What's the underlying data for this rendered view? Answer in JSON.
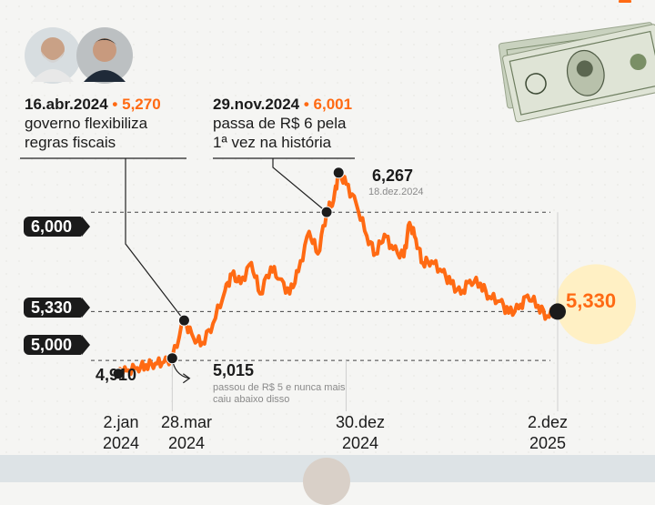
{
  "colors": {
    "series": "#ff6a13",
    "text": "#1b1b1b",
    "muted": "#8a8a8a",
    "highlight": "#fff0c4"
  },
  "portraits": [
    "portrait-icon-lula",
    "portrait-icon-haddad",
    "dollar-bills-icon"
  ],
  "annotations": {
    "abr": {
      "date": "16.abr.2024",
      "sep": " • ",
      "value": "5,270",
      "line1": "governo flexibiliza",
      "line2": "regras fiscais"
    },
    "nov": {
      "date": "29.nov.2024",
      "sep": " • ",
      "value": "6,001",
      "line1": "passa de R$ 6 pela",
      "line2": "1ª vez na história"
    }
  },
  "labels": {
    "max": "6,267",
    "max_date": "18.dez.2024",
    "start": "4,910",
    "cross5": "5,015",
    "cross5_note": "passou de R$ 5 e nunca mais caiu abaixo disso",
    "end": "5,330"
  },
  "ref_pills": {
    "p6000": "6,000",
    "p5330": "5,330",
    "p5000": "5,000"
  },
  "x_ticks": [
    {
      "line1": "2.jan",
      "line2": "2024"
    },
    {
      "line1": "28.mar",
      "line2": "2024"
    },
    {
      "line1": "30.dez",
      "line2": "2024"
    },
    {
      "line1": "2.dez",
      "line2": "2025"
    }
  ],
  "chart_data": {
    "type": "line",
    "x_start": "2024-01-02",
    "x_end": "2025-12-02",
    "ylim": [
      4.7,
      6.45
    ],
    "reference_lines": [
      6.0,
      5.33,
      5.0
    ],
    "series": [
      {
        "values": [
          {
            "x": "2024-01-02",
            "y": 4.91
          },
          {
            "x": "2024-01-15",
            "y": 4.93
          },
          {
            "x": "2024-02-01",
            "y": 4.95
          },
          {
            "x": "2024-02-15",
            "y": 4.97
          },
          {
            "x": "2024-03-01",
            "y": 4.98
          },
          {
            "x": "2024-03-15",
            "y": 4.99
          },
          {
            "x": "2024-03-28",
            "y": 5.015
          },
          {
            "x": "2024-04-16",
            "y": 5.27
          },
          {
            "x": "2024-05-01",
            "y": 5.15
          },
          {
            "x": "2024-05-15",
            "y": 5.12
          },
          {
            "x": "2024-06-01",
            "y": 5.25
          },
          {
            "x": "2024-06-20",
            "y": 5.47
          },
          {
            "x": "2024-07-01",
            "y": 5.58
          },
          {
            "x": "2024-07-15",
            "y": 5.52
          },
          {
            "x": "2024-08-01",
            "y": 5.66
          },
          {
            "x": "2024-08-15",
            "y": 5.45
          },
          {
            "x": "2024-09-01",
            "y": 5.63
          },
          {
            "x": "2024-09-15",
            "y": 5.55
          },
          {
            "x": "2024-10-01",
            "y": 5.45
          },
          {
            "x": "2024-10-15",
            "y": 5.6
          },
          {
            "x": "2024-11-01",
            "y": 5.87
          },
          {
            "x": "2024-11-15",
            "y": 5.72
          },
          {
            "x": "2024-11-29",
            "y": 6.001
          },
          {
            "x": "2024-12-10",
            "y": 6.08
          },
          {
            "x": "2024-12-18",
            "y": 6.267
          },
          {
            "x": "2024-12-30",
            "y": 6.19
          },
          {
            "x": "2025-01-15",
            "y": 6.06
          },
          {
            "x": "2025-02-01",
            "y": 5.84
          },
          {
            "x": "2025-02-15",
            "y": 5.72
          },
          {
            "x": "2025-03-01",
            "y": 5.85
          },
          {
            "x": "2025-03-15",
            "y": 5.75
          },
          {
            "x": "2025-04-01",
            "y": 5.7
          },
          {
            "x": "2025-04-10",
            "y": 5.93
          },
          {
            "x": "2025-04-20",
            "y": 5.82
          },
          {
            "x": "2025-05-01",
            "y": 5.66
          },
          {
            "x": "2025-05-15",
            "y": 5.67
          },
          {
            "x": "2025-06-01",
            "y": 5.6
          },
          {
            "x": "2025-06-15",
            "y": 5.52
          },
          {
            "x": "2025-07-01",
            "y": 5.45
          },
          {
            "x": "2025-07-15",
            "y": 5.54
          },
          {
            "x": "2025-08-01",
            "y": 5.52
          },
          {
            "x": "2025-08-15",
            "y": 5.43
          },
          {
            "x": "2025-09-01",
            "y": 5.4
          },
          {
            "x": "2025-09-15",
            "y": 5.32
          },
          {
            "x": "2025-10-01",
            "y": 5.35
          },
          {
            "x": "2025-10-15",
            "y": 5.44
          },
          {
            "x": "2025-11-01",
            "y": 5.37
          },
          {
            "x": "2025-11-15",
            "y": 5.3
          },
          {
            "x": "2025-12-02",
            "y": 5.33
          }
        ]
      }
    ],
    "highlights": [
      {
        "x": "2024-01-02",
        "y": 4.91
      },
      {
        "x": "2024-03-28",
        "y": 5.015
      },
      {
        "x": "2024-04-16",
        "y": 5.27
      },
      {
        "x": "2024-11-29",
        "y": 6.001
      },
      {
        "x": "2024-12-18",
        "y": 6.267
      },
      {
        "x": "2025-12-02",
        "y": 5.33
      }
    ]
  }
}
